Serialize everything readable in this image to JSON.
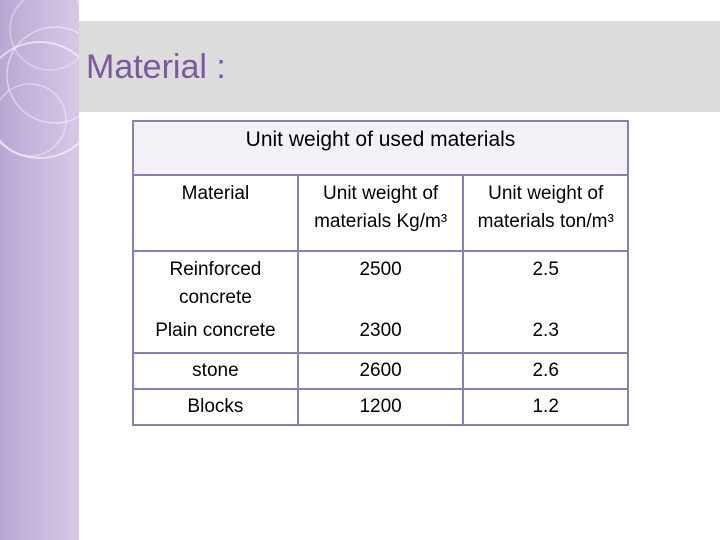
{
  "slide": {
    "title": "Material :"
  },
  "table": {
    "caption": "Unit weight of used materials",
    "headers": [
      "Material",
      "Unit weight of materials Kg/m³",
      "Unit weight of materials ton/m³"
    ],
    "rows": [
      [
        "Reinforced concrete",
        "2500",
        "2.5"
      ],
      [
        "Plain concrete",
        "2300",
        "2.3"
      ],
      [
        "stone",
        "2600",
        "2.6"
      ],
      [
        "Blocks",
        "1200",
        "1.2"
      ]
    ]
  },
  "colors": {
    "title": "#7a5a9e",
    "band": "#dcdcdc",
    "accent": "#b9a7d3",
    "table_border": "#8a7fb0"
  }
}
